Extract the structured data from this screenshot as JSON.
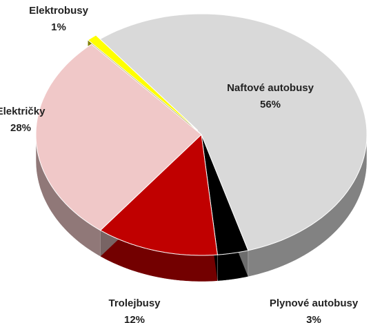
{
  "chart_data": {
    "type": "pie",
    "categories": [
      "Naftové autobusy",
      "Plynové autobusy",
      "Trolejbusy",
      "Električky",
      "Elektrobusy"
    ],
    "values": [
      56,
      3,
      12,
      28,
      1
    ],
    "value_labels": [
      "56%",
      "3%",
      "12%",
      "28%",
      "1%"
    ],
    "colors": [
      "#d9d9d9",
      "#000000",
      "#c00000",
      "#f0c8c8",
      "#ffff00"
    ]
  }
}
